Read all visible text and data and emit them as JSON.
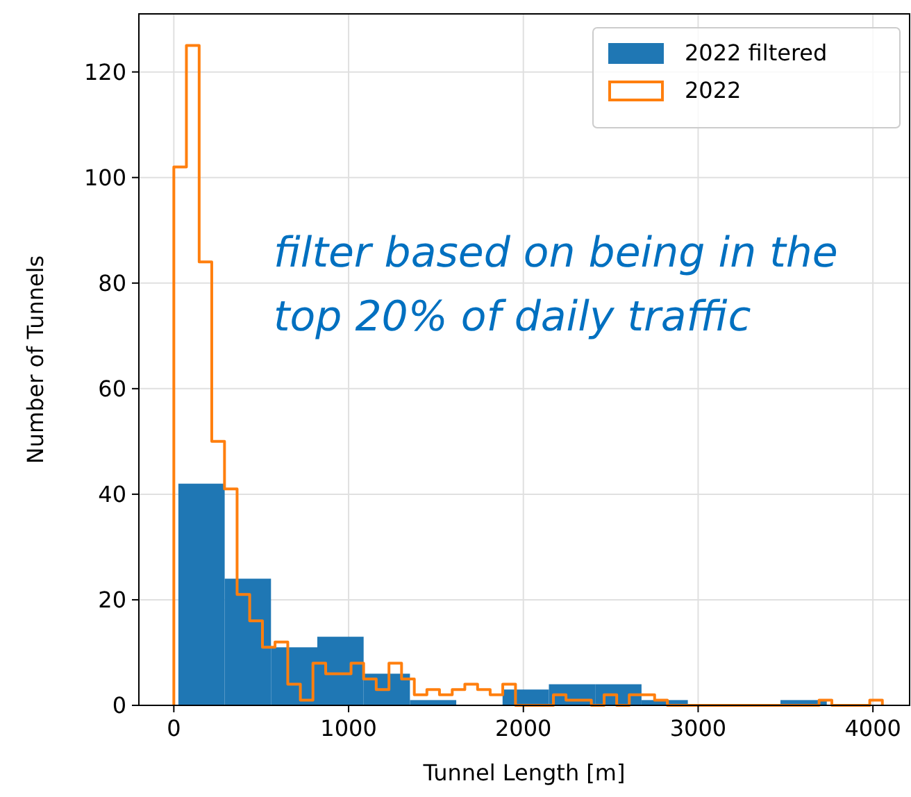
{
  "chart_data": {
    "type": "histogram",
    "xlabel": "Tunnel Length [m]",
    "ylabel": "Number of Tunnels",
    "xlim": [
      -200,
      4210
    ],
    "xticks": [
      0,
      1000,
      2000,
      3000,
      4000
    ],
    "ylim": [
      0,
      131
    ],
    "yticks": [
      0,
      20,
      40,
      60,
      80,
      100,
      120
    ],
    "grid": true,
    "legend": "top right",
    "annotations": [
      "filter based on being in the\ntop 20% of daily traffic"
    ],
    "bins": [
      26,
      291,
      556,
      821,
      1086,
      1351,
      1616,
      1881,
      2146,
      2411,
      2676,
      2941,
      3206,
      3471,
      3736
    ],
    "series": [
      {
        "name": "2022 filtered",
        "color": "#1f77b4",
        "values": [
          42,
          24,
          11,
          13,
          6,
          1,
          0,
          3,
          4,
          4,
          1,
          0,
          0,
          1
        ]
      },
      {
        "name": "2022",
        "type": "step",
        "color": "#ff7f0e",
        "x": [
          0,
          0,
          72,
          145,
          217,
          290,
          362,
          434,
          507,
          579,
          652,
          724,
          796,
          869,
          941,
          1014,
          1086,
          1158,
          1231,
          1303,
          1376,
          1448,
          1520,
          1593,
          1665,
          1738,
          1810,
          1882,
          1955,
          2027,
          2100,
          2172,
          2244,
          2317,
          2389,
          2462,
          2534,
          2606,
          2679,
          2751,
          2824,
          2896,
          2968,
          3041,
          3113,
          3186,
          3258,
          3330,
          3403,
          3475,
          3548,
          3620,
          3692,
          3765,
          3837,
          3910,
          3982,
          4054
        ],
        "values": [
          0,
          102,
          125,
          84,
          50,
          41,
          21,
          16,
          11,
          12,
          4,
          1,
          8,
          6,
          6,
          8,
          5,
          3,
          8,
          5,
          2,
          3,
          2,
          3,
          4,
          3,
          2,
          4,
          0,
          0,
          0,
          2,
          1,
          1,
          0,
          2,
          0,
          2,
          2,
          1,
          0,
          0,
          0,
          0,
          0,
          0,
          0,
          0,
          0,
          0,
          0,
          0,
          1,
          0,
          0,
          0,
          1,
          0
        ]
      }
    ]
  }
}
